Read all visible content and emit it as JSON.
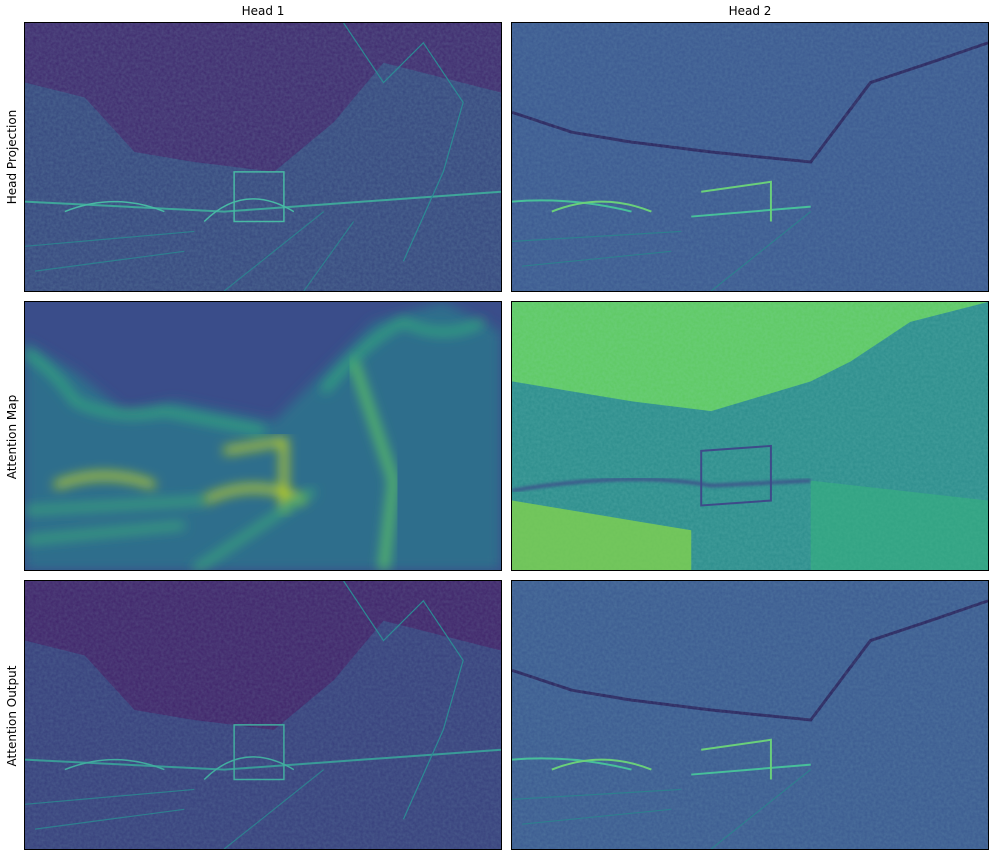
{
  "columns": [
    "Head 1",
    "Head 2"
  ],
  "rows": [
    "Head Projection",
    "Attention Map",
    "Attention Output"
  ],
  "colormap": "viridis",
  "colors": {
    "viridis_dark": "#440154",
    "viridis_blue": "#3b528b",
    "viridis_teal": "#21918c",
    "viridis_green": "#5ec962",
    "viridis_yellow": "#fde725"
  }
}
